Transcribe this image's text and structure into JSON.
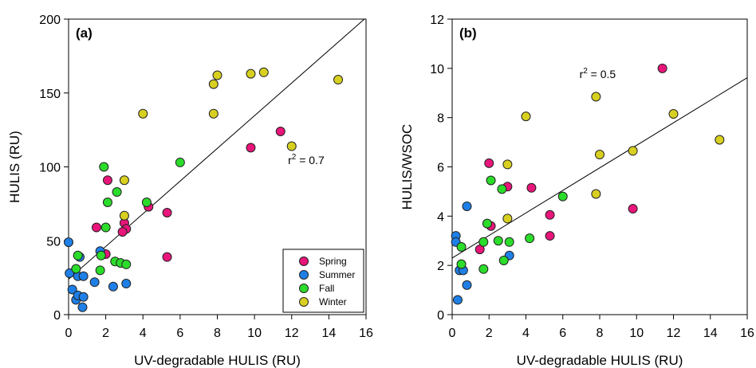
{
  "colors": {
    "Spring": "#e8157a",
    "Summer": "#1e7fe6",
    "Fall": "#2bdc2b",
    "Winter": "#d8d020",
    "marker_edge": "#222222",
    "fit_line": "#000000"
  },
  "chart_data": [
    {
      "type": "scatter",
      "panel": "(a)",
      "xlabel": "UV-degradable HULIS (RU)",
      "ylabel": "HULIS (RU)",
      "xlim": [
        0,
        16
      ],
      "ylim": [
        0,
        200
      ],
      "xticks": [
        0,
        2,
        4,
        6,
        8,
        10,
        12,
        14,
        16
      ],
      "yticks": [
        0,
        50,
        100,
        150,
        200
      ],
      "grid": false,
      "legend": "bottom-right",
      "annotation": {
        "prefix": "r",
        "sup": "2",
        "suffix": " = 0.7",
        "x": 11.8,
        "y": 102
      },
      "fit_line": {
        "x": [
          0,
          16
        ],
        "y": [
          24,
          201
        ]
      },
      "series": [
        {
          "name": "Spring",
          "points": [
            [
              2.1,
              91
            ],
            [
              2.0,
              41
            ],
            [
              1.5,
              59
            ],
            [
              3.0,
              62
            ],
            [
              3.1,
              58
            ],
            [
              2.9,
              56
            ],
            [
              4.3,
              73
            ],
            [
              5.3,
              69
            ],
            [
              5.3,
              39
            ],
            [
              9.8,
              113
            ],
            [
              11.4,
              124
            ]
          ]
        },
        {
          "name": "Summer",
          "points": [
            [
              0.0,
              49
            ],
            [
              0.05,
              28
            ],
            [
              0.2,
              17
            ],
            [
              0.4,
              10
            ],
            [
              0.5,
              13
            ],
            [
              0.6,
              39
            ],
            [
              0.5,
              26
            ],
            [
              0.8,
              26
            ],
            [
              0.8,
              12
            ],
            [
              0.75,
              5
            ],
            [
              1.4,
              22
            ],
            [
              1.7,
              43
            ],
            [
              2.4,
              19
            ],
            [
              3.1,
              21
            ]
          ]
        },
        {
          "name": "Fall",
          "points": [
            [
              0.4,
              31
            ],
            [
              0.5,
              40
            ],
            [
              1.7,
              30
            ],
            [
              1.75,
              40
            ],
            [
              1.9,
              100
            ],
            [
              2.0,
              59
            ],
            [
              2.1,
              76
            ],
            [
              2.6,
              83
            ],
            [
              2.5,
              36
            ],
            [
              2.8,
              35
            ],
            [
              3.1,
              34
            ],
            [
              4.2,
              76
            ],
            [
              6.0,
              103
            ]
          ]
        },
        {
          "name": "Winter",
          "points": [
            [
              3.0,
              67
            ],
            [
              3.0,
              91
            ],
            [
              4.0,
              136
            ],
            [
              7.8,
              156
            ],
            [
              7.8,
              136
            ],
            [
              8.0,
              162
            ],
            [
              9.8,
              163
            ],
            [
              10.5,
              164
            ],
            [
              12.0,
              114
            ],
            [
              14.5,
              159
            ]
          ]
        }
      ]
    },
    {
      "type": "scatter",
      "panel": "(b)",
      "xlabel": "UV-degradable HULIS (RU)",
      "ylabel": "HULIS/WSOC",
      "xlim": [
        0,
        16
      ],
      "ylim": [
        0,
        12
      ],
      "xticks": [
        0,
        2,
        4,
        6,
        8,
        10,
        12,
        14,
        16
      ],
      "yticks": [
        0,
        2,
        4,
        6,
        8,
        10,
        12
      ],
      "grid": false,
      "annotation": {
        "prefix": "r",
        "sup": "2",
        "suffix": " = 0.5",
        "x": 6.9,
        "y": 9.6
      },
      "fit_line": {
        "x": [
          0,
          16
        ],
        "y": [
          2.3,
          9.62
        ]
      },
      "series": [
        {
          "name": "Spring",
          "points": [
            [
              1.5,
              2.65
            ],
            [
              2.0,
              6.15
            ],
            [
              2.1,
              3.6
            ],
            [
              3.0,
              5.2
            ],
            [
              4.3,
              5.15
            ],
            [
              5.3,
              3.2
            ],
            [
              5.3,
              4.05
            ],
            [
              9.8,
              4.3
            ],
            [
              11.4,
              10.0
            ]
          ]
        },
        {
          "name": "Summer",
          "points": [
            [
              0.2,
              3.2
            ],
            [
              0.2,
              2.95
            ],
            [
              0.3,
              0.6
            ],
            [
              0.4,
              1.8
            ],
            [
              0.6,
              1.8
            ],
            [
              0.8,
              4.4
            ],
            [
              0.8,
              1.2
            ],
            [
              3.1,
              2.4
            ]
          ]
        },
        {
          "name": "Fall",
          "points": [
            [
              0.5,
              2.05
            ],
            [
              0.5,
              2.75
            ],
            [
              1.7,
              1.85
            ],
            [
              1.7,
              2.95
            ],
            [
              1.9,
              3.7
            ],
            [
              2.1,
              5.45
            ],
            [
              2.5,
              3.0
            ],
            [
              2.7,
              5.1
            ],
            [
              2.8,
              2.2
            ],
            [
              3.1,
              2.95
            ],
            [
              4.2,
              3.1
            ],
            [
              6.0,
              4.8
            ]
          ]
        },
        {
          "name": "Winter",
          "points": [
            [
              3.0,
              6.1
            ],
            [
              3.0,
              3.9
            ],
            [
              4.0,
              8.05
            ],
            [
              7.8,
              8.85
            ],
            [
              7.8,
              4.9
            ],
            [
              8.0,
              6.5
            ],
            [
              9.8,
              6.65
            ],
            [
              12.0,
              8.15
            ],
            [
              14.5,
              7.1
            ]
          ]
        }
      ]
    }
  ]
}
